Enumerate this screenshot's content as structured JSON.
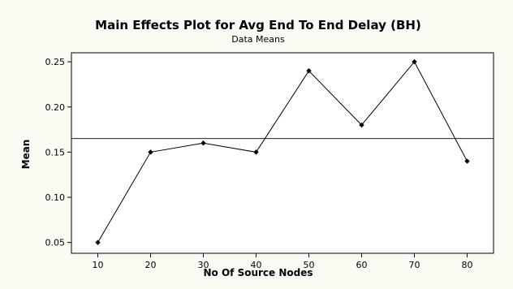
{
  "chart_data": {
    "type": "line",
    "title": "Main Effects Plot for Avg End To End Delay (BH)",
    "subtitle": "Data Means",
    "xlabel": "No Of Source Nodes",
    "ylabel": "Mean",
    "x": [
      10,
      20,
      30,
      40,
      50,
      60,
      70,
      80
    ],
    "series": [
      {
        "values": [
          0.05,
          0.15,
          0.16,
          0.15,
          0.24,
          0.18,
          0.25,
          0.14
        ]
      }
    ],
    "x_ticks": [
      "10",
      "20",
      "30",
      "40",
      "50",
      "60",
      "70",
      "80"
    ],
    "y_ticks": [
      "0.05",
      "0.10",
      "0.15",
      "0.20",
      "0.25"
    ],
    "y_tick_values": [
      0.05,
      0.1,
      0.15,
      0.2,
      0.25
    ],
    "xlim": [
      5,
      85
    ],
    "ylim": [
      0.038,
      0.26
    ],
    "reference_line": 0.165,
    "grid": false,
    "colors": {
      "background": "#fbfaf3",
      "plot_area": "#ffffff",
      "line": "#000000",
      "marker": "#000000"
    }
  }
}
